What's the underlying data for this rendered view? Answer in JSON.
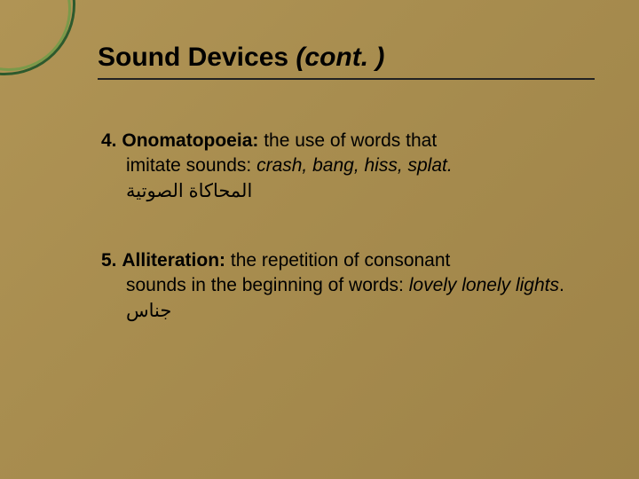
{
  "colors": {
    "background_start": "#b09455",
    "background_end": "#9e8348",
    "corner_outer": "#2d5a2d",
    "corner_inner": "#7a9a4a",
    "text": "#000000",
    "rule": "#222222"
  },
  "title": {
    "main": "Sound Devices",
    "cont": "(cont. )"
  },
  "items": [
    {
      "number": "4.",
      "term": "Onomatopoeia:",
      "def1": " the use of words that",
      "def2": "imitate sounds:  ",
      "examples": "crash, bang, hiss, splat.",
      "arabic": "المحاكاة الصوتية"
    },
    {
      "number": "5.",
      "term": "Alliteration:",
      "def1": " the repetition of consonant",
      "def2": "sounds in the beginning of words: ",
      "examples": "lovely lonely lights",
      "trailing": ". ",
      "arabic": "جناس"
    }
  ],
  "typography": {
    "title_fontsize": 30,
    "body_fontsize": 21,
    "title_weight": "bold"
  }
}
